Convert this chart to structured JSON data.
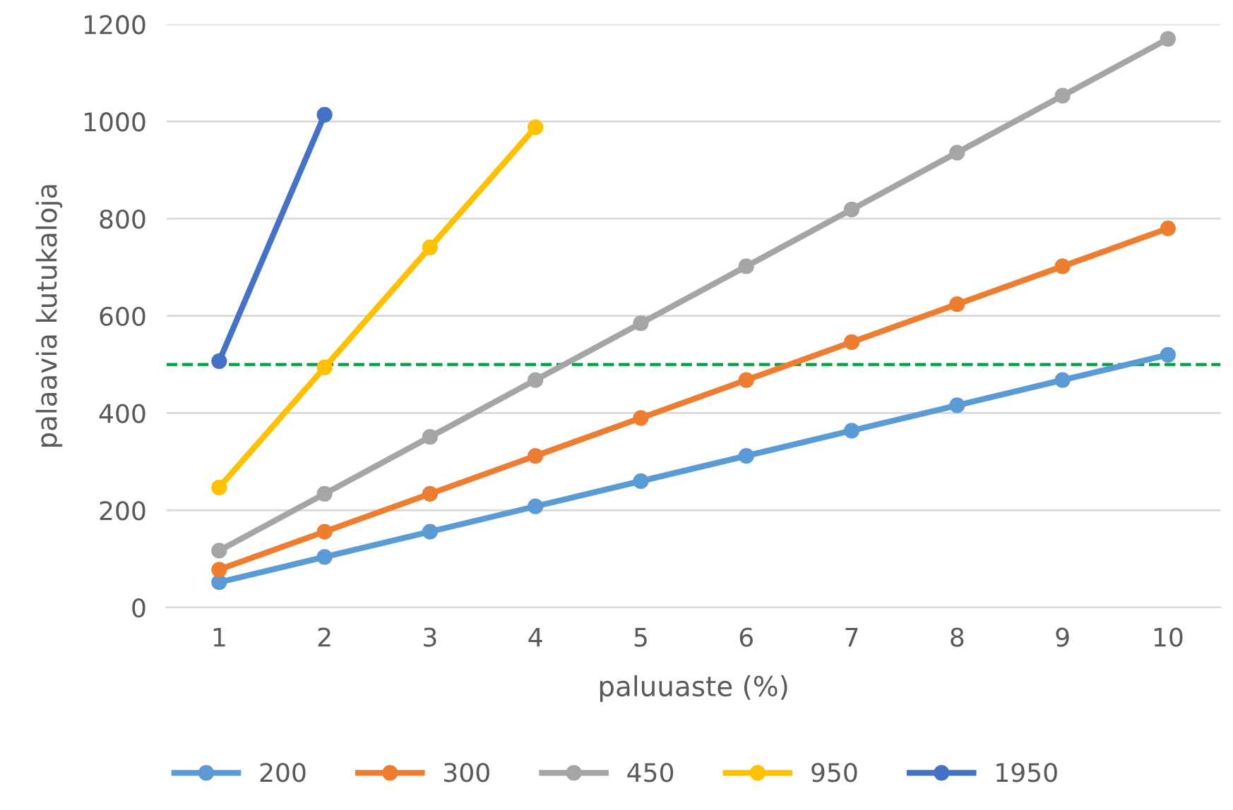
{
  "chart_data": {
    "type": "line",
    "xlabel": "paluuaste (%)",
    "ylabel": "palaavia kutukaloja",
    "categories": [
      "1",
      "2",
      "3",
      "4",
      "5",
      "6",
      "7",
      "8",
      "9",
      "10"
    ],
    "series": [
      {
        "name": "200",
        "color": "#5b9bd5",
        "values": [
          52,
          104,
          156,
          208,
          260,
          312,
          364,
          416,
          468,
          520
        ]
      },
      {
        "name": "300",
        "color": "#ed7d31",
        "values": [
          78,
          156,
          234,
          312,
          390,
          468,
          546,
          624,
          702,
          780
        ]
      },
      {
        "name": "450",
        "color": "#a5a5a5",
        "values": [
          117,
          234,
          351,
          468,
          585,
          702,
          819,
          936,
          1053,
          1170
        ]
      },
      {
        "name": "950",
        "color": "#ffc000",
        "values": [
          247,
          494,
          741,
          988,
          null,
          null,
          null,
          null,
          null,
          null
        ]
      },
      {
        "name": "1950",
        "color": "#4472c4",
        "values": [
          507,
          1014,
          null,
          null,
          null,
          null,
          null,
          null,
          null,
          null
        ]
      }
    ],
    "ylim": [
      0,
      1200
    ],
    "yticks": [
      0,
      200,
      400,
      600,
      800,
      1000,
      1200
    ],
    "ref_lines": [
      {
        "axis": "y",
        "value": 500,
        "color": "#00a040",
        "line_style": "dashed"
      }
    ],
    "grid": "y",
    "legend": "bottom",
    "marker": "circle",
    "line_style": "solid"
  }
}
